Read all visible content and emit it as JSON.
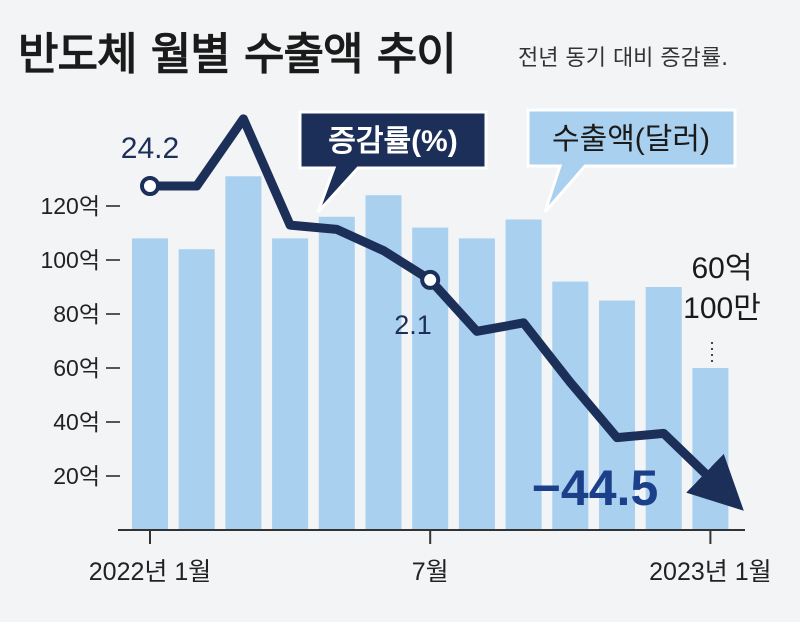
{
  "chart_data": {
    "type": "bar+line",
    "title": "반도체 월별 수출액 추이",
    "subtitle": "전년 동기 대비 증감률.",
    "categories": [
      "2022-01",
      "2022-02",
      "2022-03",
      "2022-04",
      "2022-05",
      "2022-06",
      "2022-07",
      "2022-08",
      "2022-09",
      "2022-10",
      "2022-11",
      "2022-12",
      "2023-01"
    ],
    "x_tick_labels": [
      {
        "index": 0,
        "label": "2022년 1월"
      },
      {
        "index": 6,
        "label": "7월"
      },
      {
        "index": 12,
        "label": "2023년 1월"
      }
    ],
    "bar_series": {
      "name": "수출액(달러)",
      "unit": "억 달러",
      "values": [
        108,
        104,
        131,
        108,
        116,
        124,
        112,
        108,
        115,
        92,
        85,
        90,
        60
      ]
    },
    "line_series": {
      "name": "증감률(%)",
      "values": [
        24.2,
        24.2,
        40,
        15,
        14,
        9,
        2.1,
        -10,
        -8,
        -22,
        -35,
        -34,
        -44.5
      ]
    },
    "y_axis": {
      "min": 0,
      "max": 140,
      "ticks": [
        20,
        40,
        60,
        80,
        100,
        120
      ],
      "tick_labels": [
        "20억",
        "40억",
        "60억",
        "80억",
        "100억",
        "120억"
      ]
    },
    "annotations": {
      "line_first": "24.2",
      "line_july": "2.1",
      "line_last": "−44.5",
      "bar_last_line1": "60억",
      "bar_last_line2": "100만",
      "line_callout": "증감률(%)",
      "bar_callout": "수출액(달러)"
    },
    "colors": {
      "bar": "#a9d0ef",
      "line": "#1c2f58",
      "last_value": "#1c3f8a",
      "callout_dark_bg": "#1c2f58",
      "callout_light_bg": "#a9d0ef",
      "background": "#f2f4f6"
    }
  }
}
